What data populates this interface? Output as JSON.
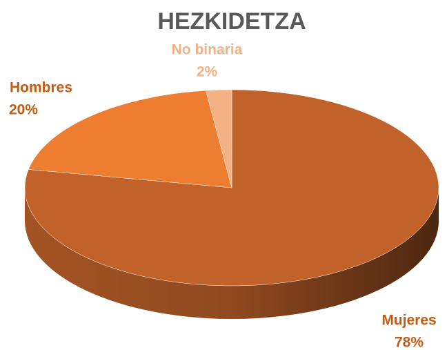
{
  "chart_data": {
    "type": "pie",
    "title": "HEZKIDETZA",
    "categories": [
      "Mujeres",
      "Hombres",
      "No binaria"
    ],
    "values": [
      78,
      20,
      2
    ],
    "value_labels": [
      "78%",
      "20%",
      "2%"
    ],
    "colors": [
      "#c0622a",
      "#ed7d31",
      "#f4b183"
    ],
    "label_colors": [
      "#c55a11",
      "#c55a11",
      "#f4b183"
    ]
  }
}
